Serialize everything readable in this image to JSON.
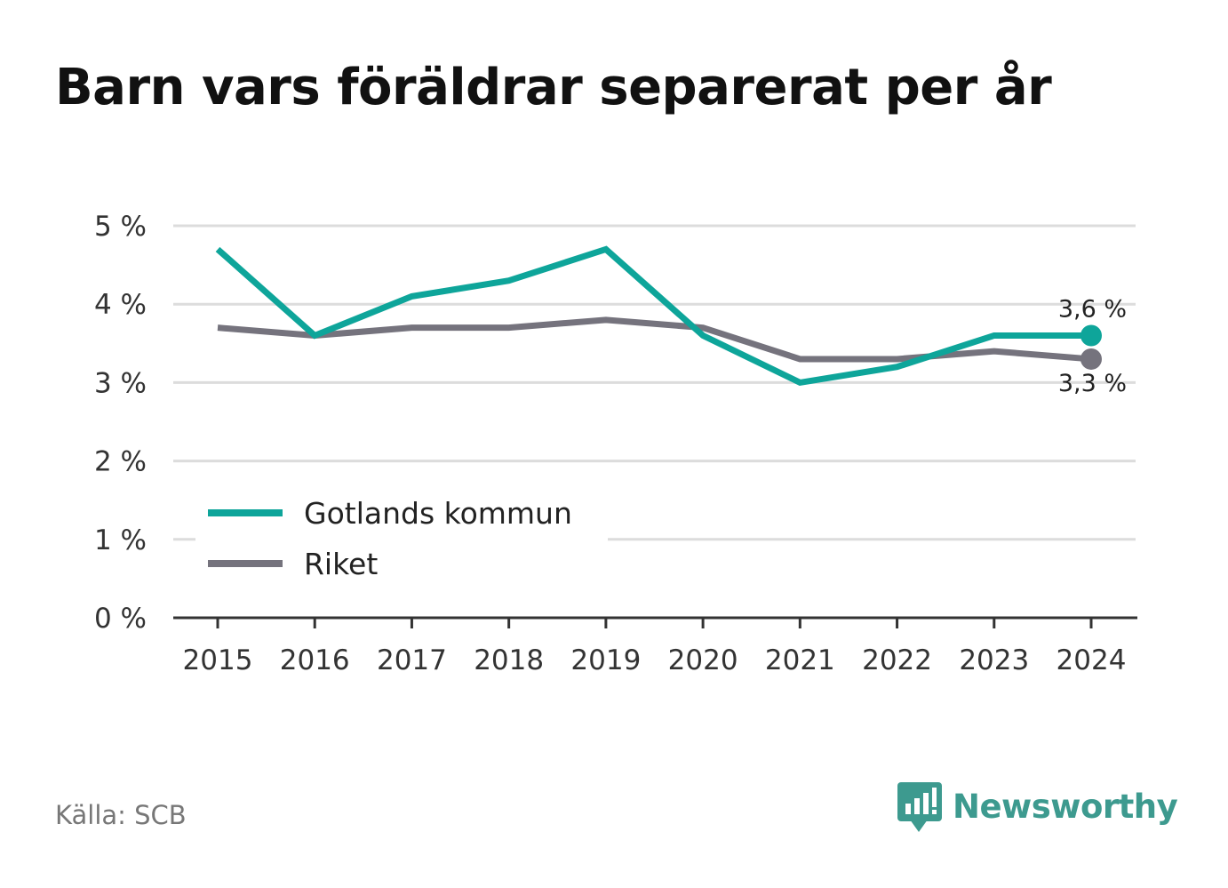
{
  "title": "Barn vars föräldrar separerat per år",
  "source": "Källa: SCB",
  "brand": "Newsworthy",
  "colors": {
    "accent": "#0ea59a",
    "national": "#75737d",
    "brand": "#3d9a8f"
  },
  "chart_data": {
    "type": "line",
    "title": "Barn vars föräldrar separerat per år",
    "categories": [
      "2015",
      "2016",
      "2017",
      "2018",
      "2019",
      "2020",
      "2021",
      "2022",
      "2023",
      "2024"
    ],
    "yticks": [
      "0 %",
      "1 %",
      "2 %",
      "3 %",
      "4 %",
      "5 %"
    ],
    "ylim": [
      0,
      5
    ],
    "grid": true,
    "legend_position": "bottom-left",
    "series": [
      {
        "name": "Gotlands kommun",
        "color": "#0ea59a",
        "values": [
          4.7,
          3.6,
          4.1,
          4.3,
          4.7,
          3.6,
          3.0,
          3.2,
          3.6,
          3.6
        ],
        "end_label": "3,6 %"
      },
      {
        "name": "Riket",
        "color": "#75737d",
        "values": [
          3.7,
          3.6,
          3.7,
          3.7,
          3.8,
          3.7,
          3.3,
          3.3,
          3.4,
          3.3
        ],
        "end_label": "3,3 %"
      }
    ]
  }
}
